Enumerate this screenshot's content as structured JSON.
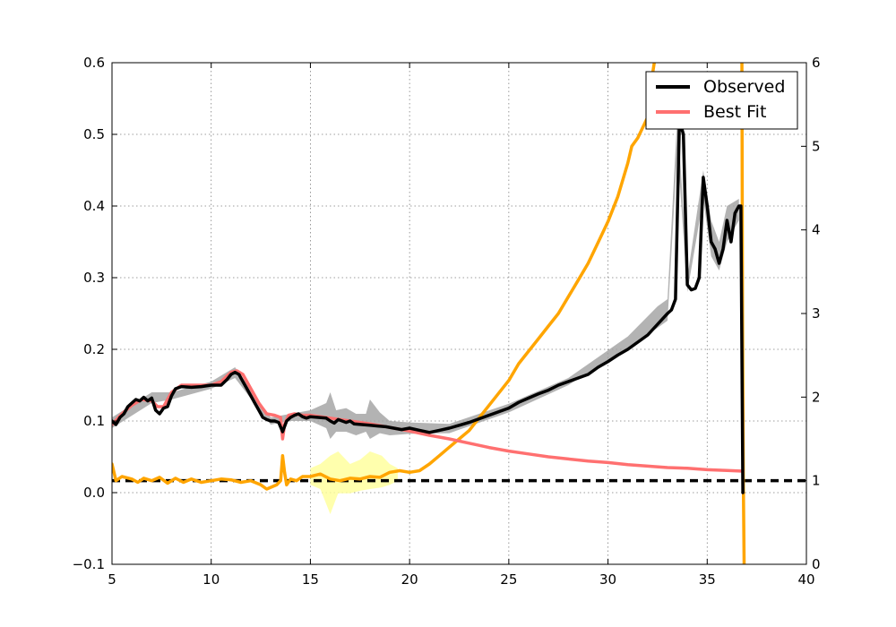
{
  "chart_data": {
    "type": "line",
    "title": "",
    "xlabel": "",
    "ylabel": "",
    "y2label": "",
    "xlim": [
      5,
      40
    ],
    "ylim": [
      -0.1,
      0.6
    ],
    "y2lim": [
      0,
      6
    ],
    "grid": true,
    "legend": "top-right",
    "x_ticks": [
      5,
      10,
      15,
      20,
      25,
      30,
      35,
      40
    ],
    "y_ticks": [
      -0.1,
      0.0,
      0.1,
      0.2,
      0.3,
      0.4,
      0.5,
      0.6
    ],
    "y_tick_labels": [
      "−0.1",
      "0.0",
      "0.1",
      "0.2",
      "0.3",
      "0.4",
      "0.5",
      "0.6"
    ],
    "y2_ticks": [
      0,
      1,
      2,
      3,
      4,
      5,
      6
    ],
    "colors": {
      "observed": "#000000",
      "best_fit": "#ff7070",
      "ratio": "#ffa500",
      "ratio_band": "#ffff99",
      "observed_band": "#a0a0a0",
      "reference_line": "#000000"
    },
    "series": [
      {
        "name": "Observed",
        "axis": "left",
        "x": [
          5.0,
          5.2,
          5.4,
          5.6,
          5.8,
          6.0,
          6.2,
          6.4,
          6.6,
          6.8,
          7.0,
          7.2,
          7.4,
          7.6,
          7.8,
          8.0,
          8.2,
          8.5,
          9.0,
          9.5,
          10.0,
          10.5,
          10.8,
          11.0,
          11.2,
          11.4,
          11.6,
          11.8,
          12.0,
          12.2,
          12.4,
          12.6,
          12.8,
          13.0,
          13.2,
          13.4,
          13.6,
          13.8,
          14.0,
          14.2,
          14.4,
          14.6,
          14.8,
          15.0,
          15.4,
          15.8,
          16.0,
          16.2,
          16.4,
          16.8,
          17.0,
          17.2,
          17.6,
          18.0,
          18.4,
          18.8,
          19.2,
          19.6,
          20.0,
          20.5,
          21.0,
          21.5,
          22.0,
          22.5,
          23.0,
          23.5,
          24.0,
          24.5,
          25.0,
          25.5,
          26.0,
          26.5,
          27.0,
          27.5,
          28.0,
          28.5,
          29.0,
          29.5,
          30.0,
          30.5,
          31.0,
          31.5,
          32.0,
          32.5,
          33.0,
          33.2,
          33.4,
          33.6,
          33.8,
          34.0,
          34.2,
          34.4,
          34.6,
          34.8,
          35.0,
          35.2,
          35.4,
          35.6,
          35.8,
          36.0,
          36.2,
          36.4,
          36.6,
          36.7,
          36.8
        ],
        "values": [
          0.1,
          0.095,
          0.105,
          0.11,
          0.12,
          0.125,
          0.13,
          0.128,
          0.133,
          0.128,
          0.132,
          0.115,
          0.11,
          0.118,
          0.12,
          0.135,
          0.145,
          0.148,
          0.147,
          0.148,
          0.15,
          0.15,
          0.158,
          0.165,
          0.168,
          0.165,
          0.155,
          0.145,
          0.135,
          0.125,
          0.115,
          0.105,
          0.102,
          0.1,
          0.1,
          0.098,
          0.085,
          0.1,
          0.105,
          0.108,
          0.11,
          0.106,
          0.104,
          0.106,
          0.105,
          0.104,
          0.1,
          0.097,
          0.102,
          0.098,
          0.1,
          0.096,
          0.095,
          0.094,
          0.093,
          0.092,
          0.09,
          0.088,
          0.09,
          0.087,
          0.084,
          0.087,
          0.09,
          0.094,
          0.098,
          0.103,
          0.108,
          0.113,
          0.118,
          0.126,
          0.132,
          0.138,
          0.143,
          0.15,
          0.155,
          0.16,
          0.165,
          0.175,
          0.183,
          0.192,
          0.2,
          0.21,
          0.22,
          0.235,
          0.25,
          0.255,
          0.27,
          0.52,
          0.5,
          0.29,
          0.283,
          0.285,
          0.3,
          0.44,
          0.4,
          0.35,
          0.34,
          0.32,
          0.34,
          0.38,
          0.35,
          0.39,
          0.4,
          0.4,
          0.0
        ]
      },
      {
        "name": "Best Fit",
        "axis": "left",
        "x": [
          5.0,
          5.5,
          6.0,
          6.5,
          7.0,
          7.3,
          7.6,
          8.0,
          8.5,
          9.0,
          9.5,
          10.0,
          10.5,
          11.0,
          11.3,
          11.6,
          12.0,
          12.4,
          12.8,
          13.2,
          13.5,
          13.6,
          13.7,
          13.9,
          14.2,
          14.6,
          15.0,
          15.5,
          16.0,
          17.0,
          18.0,
          19.0,
          20.0,
          21.0,
          22.0,
          23.0,
          24.0,
          25.0,
          26.0,
          27.0,
          28.0,
          29.0,
          30.0,
          31.0,
          32.0,
          33.0,
          34.0,
          35.0,
          36.0,
          36.8
        ],
        "values": [
          0.095,
          0.11,
          0.122,
          0.13,
          0.128,
          0.12,
          0.12,
          0.14,
          0.15,
          0.15,
          0.15,
          0.15,
          0.155,
          0.168,
          0.17,
          0.165,
          0.145,
          0.125,
          0.11,
          0.108,
          0.105,
          0.075,
          0.095,
          0.108,
          0.11,
          0.108,
          0.108,
          0.106,
          0.104,
          0.1,
          0.096,
          0.091,
          0.086,
          0.08,
          0.075,
          0.069,
          0.063,
          0.058,
          0.054,
          0.05,
          0.047,
          0.044,
          0.042,
          0.039,
          0.037,
          0.035,
          0.034,
          0.032,
          0.031,
          0.03
        ]
      },
      {
        "name": "",
        "axis": "right",
        "x": [
          5.0,
          5.2,
          5.5,
          6.0,
          6.3,
          6.6,
          7.0,
          7.4,
          7.8,
          8.2,
          8.6,
          9.0,
          9.5,
          10.0,
          10.5,
          11.0,
          11.5,
          12.0,
          12.5,
          12.8,
          13.0,
          13.3,
          13.5,
          13.6,
          13.7,
          13.8,
          14.0,
          14.3,
          14.6,
          15.0,
          15.5,
          16.0,
          16.5,
          17.0,
          17.5,
          18.0,
          18.5,
          19.0,
          19.5,
          20.0,
          20.5,
          21.0,
          21.5,
          22.0,
          22.5,
          23.0,
          23.5,
          24.0,
          24.5,
          25.0,
          25.5,
          26.0,
          26.5,
          27.0,
          27.5,
          28.0,
          28.5,
          29.0,
          29.5,
          30.0,
          30.5,
          31.0,
          31.2,
          31.5,
          32.0,
          32.2,
          32.4
        ],
        "values": [
          1.2,
          1.0,
          1.05,
          1.02,
          0.98,
          1.03,
          1.0,
          1.04,
          0.97,
          1.03,
          0.98,
          1.02,
          0.98,
          1.0,
          1.02,
          1.01,
          0.98,
          1.0,
          0.95,
          0.9,
          0.92,
          0.95,
          1.0,
          1.3,
          1.1,
          0.95,
          1.02,
          1.0,
          1.05,
          1.05,
          1.08,
          1.02,
          1.0,
          1.03,
          1.02,
          1.05,
          1.04,
          1.1,
          1.12,
          1.1,
          1.12,
          1.2,
          1.3,
          1.4,
          1.5,
          1.6,
          1.75,
          1.9,
          2.05,
          2.2,
          2.4,
          2.55,
          2.7,
          2.85,
          3.0,
          3.2,
          3.4,
          3.6,
          3.85,
          4.1,
          4.4,
          4.8,
          5.0,
          5.1,
          5.35,
          5.8,
          6.1
        ]
      },
      {
        "name": "",
        "axis": "right",
        "x": [
          36.75,
          36.78,
          36.82,
          36.86
        ],
        "values": [
          6.1,
          3.0,
          1.0,
          0.0
        ]
      }
    ],
    "reference_line": {
      "axis": "right",
      "value": 1.0,
      "style": "dashed"
    },
    "observed_band": [
      {
        "x": 5.0,
        "low": 0.09,
        "high": 0.105
      },
      {
        "x": 7.0,
        "low": 0.125,
        "high": 0.14
      },
      {
        "x": 8.0,
        "low": 0.13,
        "high": 0.14
      },
      {
        "x": 10.0,
        "low": 0.145,
        "high": 0.155
      },
      {
        "x": 11.2,
        "low": 0.16,
        "high": 0.175
      },
      {
        "x": 13.0,
        "low": 0.095,
        "high": 0.105
      },
      {
        "x": 14.0,
        "low": 0.1,
        "high": 0.11
      },
      {
        "x": 15.0,
        "low": 0.1,
        "high": 0.115
      },
      {
        "x": 15.8,
        "low": 0.09,
        "high": 0.125
      },
      {
        "x": 16.0,
        "low": 0.075,
        "high": 0.14
      },
      {
        "x": 16.3,
        "low": 0.085,
        "high": 0.115
      },
      {
        "x": 16.8,
        "low": 0.085,
        "high": 0.118
      },
      {
        "x": 17.3,
        "low": 0.08,
        "high": 0.11
      },
      {
        "x": 17.8,
        "low": 0.085,
        "high": 0.11
      },
      {
        "x": 18.0,
        "low": 0.075,
        "high": 0.13
      },
      {
        "x": 18.5,
        "low": 0.083,
        "high": 0.112
      },
      {
        "x": 19.0,
        "low": 0.08,
        "high": 0.1
      },
      {
        "x": 20.0,
        "low": 0.082,
        "high": 0.098
      },
      {
        "x": 22.0,
        "low": 0.083,
        "high": 0.096
      },
      {
        "x": 25.0,
        "low": 0.112,
        "high": 0.124
      },
      {
        "x": 28.0,
        "low": 0.15,
        "high": 0.16
      },
      {
        "x": 31.0,
        "low": 0.202,
        "high": 0.218
      },
      {
        "x": 32.5,
        "low": 0.23,
        "high": 0.26
      },
      {
        "x": 33.0,
        "low": 0.24,
        "high": 0.27
      },
      {
        "x": 33.5,
        "low": 0.48,
        "high": 0.53
      },
      {
        "x": 34.0,
        "low": 0.28,
        "high": 0.3
      },
      {
        "x": 34.8,
        "low": 0.41,
        "high": 0.45
      },
      {
        "x": 35.2,
        "low": 0.33,
        "high": 0.38
      },
      {
        "x": 35.6,
        "low": 0.31,
        "high": 0.35
      },
      {
        "x": 36.0,
        "low": 0.35,
        "high": 0.4
      },
      {
        "x": 36.6,
        "low": 0.38,
        "high": 0.41
      }
    ],
    "ratio_band": [
      {
        "x": 15.0,
        "low": 0.95,
        "high": 1.15
      },
      {
        "x": 15.5,
        "low": 0.9,
        "high": 1.2
      },
      {
        "x": 16.0,
        "low": 0.6,
        "high": 1.3
      },
      {
        "x": 16.4,
        "low": 0.85,
        "high": 1.35
      },
      {
        "x": 17.0,
        "low": 0.85,
        "high": 1.2
      },
      {
        "x": 17.5,
        "low": 0.88,
        "high": 1.25
      },
      {
        "x": 18.0,
        "low": 0.9,
        "high": 1.35
      },
      {
        "x": 18.6,
        "low": 0.92,
        "high": 1.3
      },
      {
        "x": 19.0,
        "low": 0.95,
        "high": 1.2
      },
      {
        "x": 19.4,
        "low": 1.0,
        "high": 1.15
      }
    ]
  },
  "legend": {
    "items": [
      {
        "label": "Observed",
        "color": "#000000"
      },
      {
        "label": "Best Fit",
        "color": "#ff7070"
      }
    ]
  }
}
